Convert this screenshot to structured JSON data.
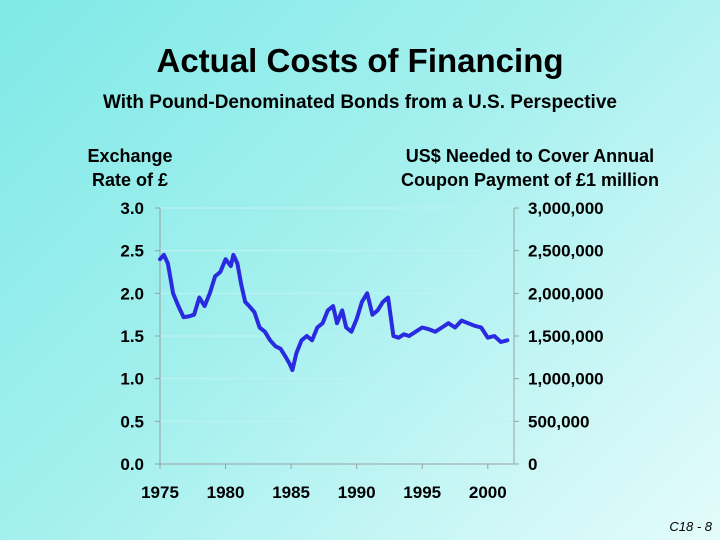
{
  "slide": {
    "title": "Actual Costs of Financing",
    "subtitle": "With Pound-Denominated Bonds from a U.S. Perspective",
    "footer": "C18 - 8"
  },
  "colors": {
    "line": "#2a2ae0",
    "grid": "#bff3f3",
    "axis": "#9aa0a0"
  },
  "chart_data": {
    "type": "line",
    "ylabel_left": "Exchange\nRate of £",
    "ylabel_right": "US$ Needed to Cover Annual\nCoupon Payment of £1 million",
    "ylim": [
      0,
      3.0
    ],
    "ylim_right": [
      0,
      3000000
    ],
    "xlim": [
      1975,
      2002
    ],
    "x_ticks": [
      1975,
      1980,
      1985,
      1990,
      1995,
      2000
    ],
    "y_ticks": [
      "0.0",
      "0.5",
      "1.0",
      "1.5",
      "2.0",
      "2.5",
      "3.0"
    ],
    "y_ticks_right": [
      "0",
      "500,000",
      "1,000,000",
      "1,500,000",
      "2,000,000",
      "2,500,000",
      "3,000,000"
    ],
    "grid": true,
    "series": [
      {
        "x": [
          1975.0,
          1975.3,
          1975.6,
          1976.0,
          1976.4,
          1976.8,
          1977.2,
          1977.6,
          1978.0,
          1978.4,
          1978.8,
          1979.2,
          1979.6,
          1980.0,
          1980.4,
          1980.6,
          1980.9,
          1981.2,
          1981.5,
          1981.8,
          1982.2,
          1982.6,
          1983.0,
          1983.4,
          1983.8,
          1984.2,
          1984.6,
          1984.9,
          1985.1,
          1985.4,
          1985.8,
          1986.2,
          1986.6,
          1987.0,
          1987.4,
          1987.8,
          1988.2,
          1988.5,
          1988.9,
          1989.2,
          1989.6,
          1990.0,
          1990.4,
          1990.8,
          1991.2,
          1991.6,
          1992.0,
          1992.4,
          1992.8,
          1993.2,
          1993.6,
          1994.0,
          1994.5,
          1995.0,
          1995.5,
          1996.0,
          1996.5,
          1997.0,
          1997.5,
          1998.0,
          1998.5,
          1999.0,
          1999.5,
          2000.0,
          2000.5,
          2001.0,
          2001.5
        ],
        "y": [
          2.4,
          2.45,
          2.35,
          2.0,
          1.85,
          1.72,
          1.73,
          1.75,
          1.95,
          1.85,
          2.0,
          2.2,
          2.25,
          2.4,
          2.32,
          2.45,
          2.35,
          2.1,
          1.9,
          1.85,
          1.78,
          1.6,
          1.55,
          1.45,
          1.38,
          1.35,
          1.25,
          1.17,
          1.1,
          1.3,
          1.45,
          1.5,
          1.45,
          1.6,
          1.65,
          1.8,
          1.85,
          1.65,
          1.8,
          1.6,
          1.55,
          1.7,
          1.9,
          2.0,
          1.75,
          1.8,
          1.9,
          1.95,
          1.5,
          1.48,
          1.52,
          1.5,
          1.55,
          1.6,
          1.58,
          1.55,
          1.6,
          1.65,
          1.6,
          1.68,
          1.65,
          1.62,
          1.6,
          1.48,
          1.5,
          1.43,
          1.45
        ]
      }
    ]
  }
}
